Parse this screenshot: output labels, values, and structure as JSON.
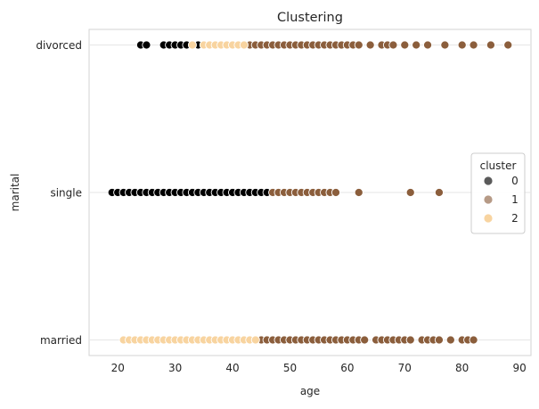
{
  "chart_data": {
    "type": "scatter",
    "title": "Clustering",
    "xlabel": "age",
    "ylabel": "marital",
    "xlim": [
      15,
      92
    ],
    "x_ticks": [
      20,
      30,
      40,
      50,
      60,
      70,
      80,
      90
    ],
    "categories": [
      "divorced",
      "single",
      "married"
    ],
    "grid": true,
    "legend": {
      "title": "cluster",
      "placement": "center-right",
      "entries": [
        {
          "label": "0",
          "color": "#5a5a5a"
        },
        {
          "label": "1",
          "color": "#b69a86"
        },
        {
          "label": "2",
          "color": "#f8d4a0"
        }
      ]
    },
    "series": [
      {
        "name": "0",
        "color": "#000000",
        "points": [
          {
            "category": "divorced",
            "x": [
              24,
              25,
              28,
              29,
              30,
              31,
              32,
              34
            ]
          },
          {
            "category": "single",
            "x": [
              19,
              20,
              21,
              22,
              23,
              24,
              25,
              26,
              27,
              28,
              29,
              30,
              31,
              32,
              33,
              34,
              35,
              36,
              37,
              38,
              39,
              40,
              41,
              42,
              43,
              44,
              45,
              46
            ]
          }
        ]
      },
      {
        "name": "1",
        "color": "#8b5e3c",
        "points": [
          {
            "category": "divorced",
            "x": [
              43,
              44,
              45,
              46,
              47,
              48,
              49,
              50,
              51,
              52,
              53,
              54,
              55,
              56,
              57,
              58,
              59,
              60,
              61,
              62,
              64,
              66,
              67,
              68,
              70,
              72,
              74,
              77,
              80,
              82,
              85,
              88
            ]
          },
          {
            "category": "single",
            "x": [
              47,
              48,
              49,
              50,
              51,
              52,
              53,
              54,
              55,
              56,
              57,
              58,
              62,
              71,
              76
            ]
          },
          {
            "category": "married",
            "x": [
              45,
              46,
              47,
              48,
              49,
              50,
              51,
              52,
              53,
              54,
              55,
              56,
              57,
              58,
              59,
              60,
              61,
              62,
              63,
              65,
              66,
              67,
              68,
              69,
              70,
              71,
              73,
              74,
              75,
              76,
              78,
              80,
              81,
              82
            ]
          }
        ]
      },
      {
        "name": "2",
        "color": "#f8d4a0",
        "points": [
          {
            "category": "divorced",
            "x": [
              33,
              35,
              36,
              37,
              38,
              39,
              40,
              41,
              42
            ]
          },
          {
            "category": "married",
            "x": [
              21,
              22,
              23,
              24,
              25,
              26,
              27,
              28,
              29,
              30,
              31,
              32,
              33,
              34,
              35,
              36,
              37,
              38,
              39,
              40,
              41,
              42,
              43,
              44
            ]
          }
        ]
      }
    ]
  }
}
